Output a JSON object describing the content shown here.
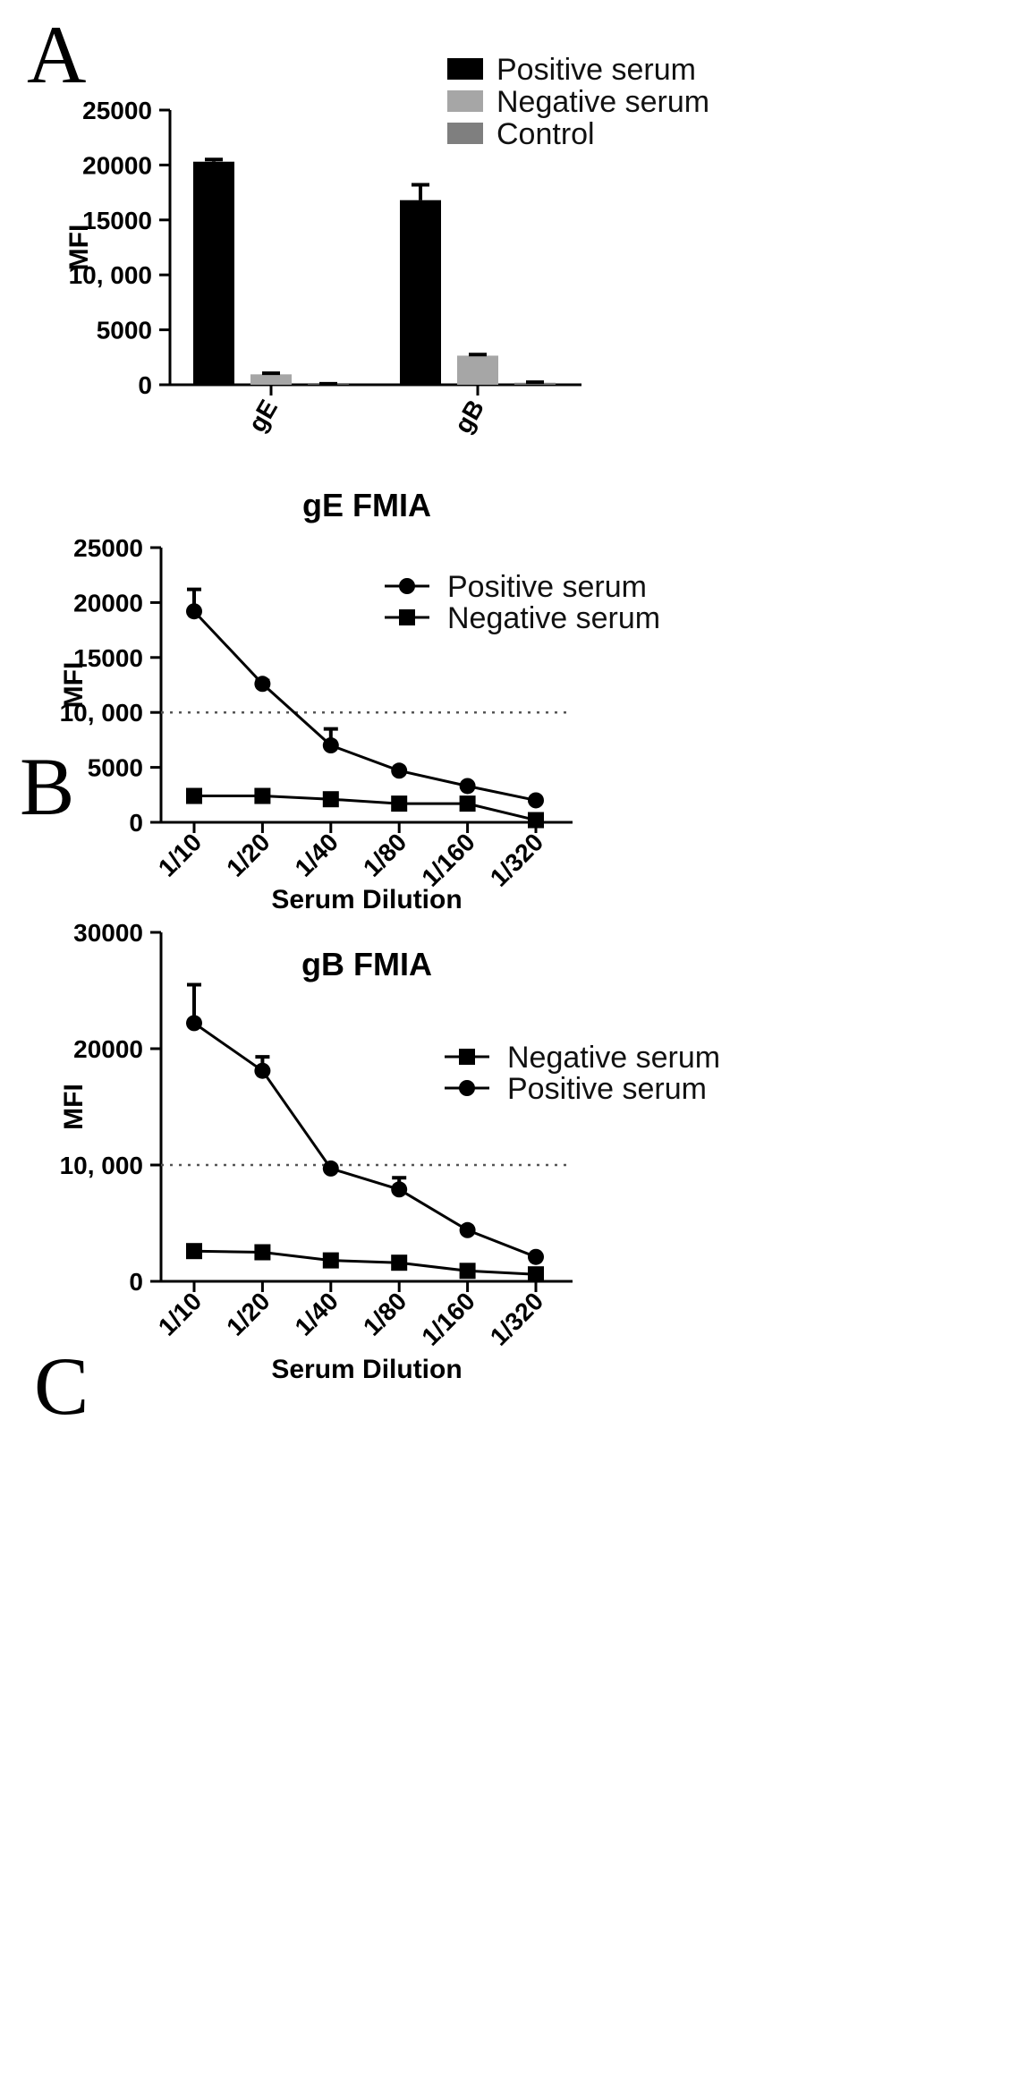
{
  "chart_data": [
    {
      "panel": "A",
      "type": "bar",
      "title": "",
      "xlabel": "",
      "ylabel": "MFI",
      "ylim": [
        0,
        25000
      ],
      "yticks": [
        0,
        5000,
        10000,
        15000,
        20000,
        25000
      ],
      "ytick_labels": [
        "0",
        "5000",
        "10, 000",
        "15000",
        "20000",
        "25000"
      ],
      "categories": [
        "gE",
        "gB"
      ],
      "legend_position": "top-right",
      "series": [
        {
          "name": "Positive serum",
          "color": "#000000",
          "values": [
            20300,
            16800
          ],
          "errors": [
            200,
            1400
          ]
        },
        {
          "name": "Negative serum",
          "color": "#a6a6a6",
          "values": [
            950,
            2650
          ],
          "errors": [
            100,
            100
          ]
        },
        {
          "name": "Control",
          "color": "#7f7f7f",
          "values": [
            60,
            180
          ],
          "errors": [
            30,
            50
          ]
        }
      ]
    },
    {
      "panel": "B",
      "type": "line",
      "title": "gE FMIA",
      "xlabel": "Serum Dilution",
      "ylabel": "MFI",
      "ylim": [
        0,
        25000
      ],
      "yticks": [
        0,
        5000,
        10000,
        15000,
        20000,
        25000
      ],
      "ytick_labels": [
        "0",
        "5000",
        "10, 000",
        "15000",
        "20000",
        "25000"
      ],
      "categories": [
        "1/10",
        "1/20",
        "1/40",
        "1/80",
        "1/160",
        "1/320"
      ],
      "reference_line": 10000,
      "legend_position": "top-right",
      "series": [
        {
          "name": "Positive serum",
          "marker": "circle",
          "values": [
            19200,
            12600,
            7000,
            4700,
            3300,
            2000
          ],
          "errors": [
            2000,
            300,
            1500,
            0,
            0,
            0
          ]
        },
        {
          "name": "Negative serum",
          "marker": "square",
          "values": [
            2400,
            2400,
            2100,
            1700,
            1700,
            200
          ],
          "errors": [
            0,
            0,
            0,
            0,
            0,
            0
          ]
        }
      ]
    },
    {
      "panel": "C",
      "type": "line",
      "title": "gB FMIA",
      "xlabel": "Serum Dilution",
      "ylabel": "MFI",
      "ylim": [
        0,
        30000
      ],
      "yticks": [
        0,
        10000,
        20000,
        30000
      ],
      "ytick_labels": [
        "0",
        "10, 000",
        "20000",
        "30000"
      ],
      "categories": [
        "1/10",
        "1/20",
        "1/40",
        "1/80",
        "1/160",
        "1/320"
      ],
      "reference_line": 10000,
      "legend_position": "top-right",
      "series": [
        {
          "name": "Negative serum",
          "marker": "square",
          "values": [
            2600,
            2500,
            1800,
            1600,
            900,
            600
          ],
          "errors": [
            0,
            0,
            0,
            0,
            0,
            0
          ]
        },
        {
          "name": "Positive serum",
          "marker": "circle",
          "values": [
            22200,
            18100,
            9700,
            7900,
            4400,
            2100
          ],
          "errors": [
            3300,
            1200,
            0,
            1000,
            0,
            0
          ]
        }
      ]
    }
  ]
}
